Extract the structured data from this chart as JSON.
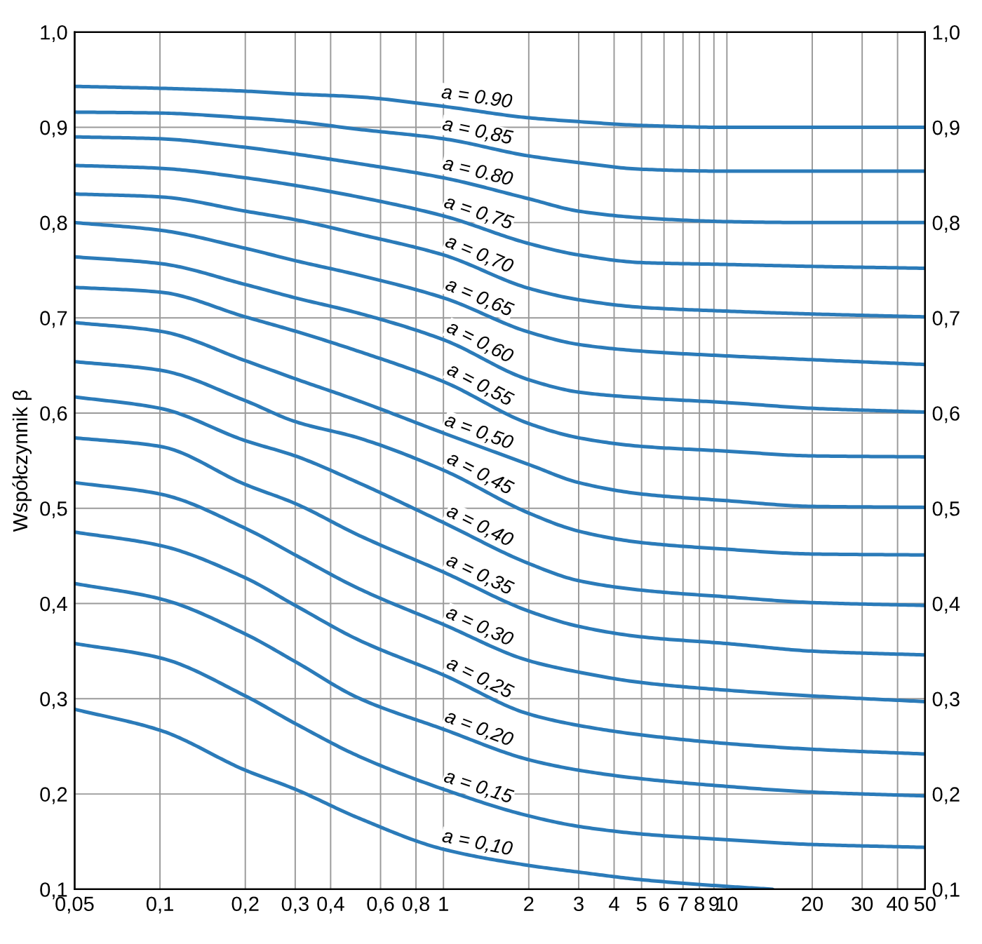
{
  "chart_data": {
    "type": "line",
    "ylabel": "Współczynnik β",
    "log": "x",
    "grid": true,
    "legend": false,
    "marker": "none",
    "line_style": "solid",
    "x": [
      0.05,
      0.1,
      0.2,
      0.3,
      0.5,
      1,
      2,
      3,
      5,
      10,
      20,
      50
    ],
    "xlim": [
      0.05,
      50
    ],
    "xticks": [
      {
        "value": 0.05,
        "label": "0,05"
      },
      {
        "value": 0.1,
        "label": "0,1"
      },
      {
        "value": 0.2,
        "label": "0,2"
      },
      {
        "value": 0.3,
        "label": "0,3"
      },
      {
        "value": 0.4,
        "label": "0,4"
      },
      {
        "value": 0.6,
        "label": "0,6"
      },
      {
        "value": 0.8,
        "label": "0,8"
      },
      1,
      2,
      3,
      4,
      5,
      6,
      7,
      8,
      9,
      10,
      20,
      30,
      40,
      50
    ],
    "ylim": [
      0.1,
      1.0
    ],
    "yticks": [
      {
        "value": 0.1,
        "label": "0,1"
      },
      {
        "value": 0.2,
        "label": "0,2"
      },
      {
        "value": 0.3,
        "label": "0,3"
      },
      {
        "value": 0.4,
        "label": "0,4"
      },
      {
        "value": 0.5,
        "label": "0,5"
      },
      {
        "value": 0.6,
        "label": "0,6"
      },
      {
        "value": 0.7,
        "label": "0,7"
      },
      {
        "value": 0.8,
        "label": "0,8"
      },
      {
        "value": 0.9,
        "label": "0,9"
      },
      {
        "value": 1.0,
        "label": "1,0"
      }
    ],
    "y2lim": [
      0.1,
      1.0
    ],
    "y2ticks": [
      {
        "value": 0.1,
        "label": "0,1"
      },
      {
        "value": 0.2,
        "label": "0,2"
      },
      {
        "value": 0.3,
        "label": "0,3"
      },
      {
        "value": 0.4,
        "label": "0,4"
      },
      {
        "value": 0.5,
        "label": "0,5"
      },
      {
        "value": 0.6,
        "label": "0,6"
      },
      {
        "value": 0.7,
        "label": "0,7"
      },
      {
        "value": 0.8,
        "label": "0,8"
      },
      {
        "value": 0.9,
        "label": "0,9"
      },
      {
        "value": 1.0,
        "label": "1,0"
      }
    ],
    "series": [
      {
        "name": "a = 0.90",
        "color": "#2b7bb9",
        "values": [
          0.943,
          0.941,
          0.938,
          0.935,
          0.932,
          0.922,
          0.91,
          0.906,
          0.902,
          0.9,
          0.9,
          0.9
        ]
      },
      {
        "name": "a = 0,85",
        "color": "#2b7bb9",
        "values": [
          0.916,
          0.915,
          0.91,
          0.906,
          0.898,
          0.888,
          0.87,
          0.863,
          0.856,
          0.854,
          0.854,
          0.854
        ]
      },
      {
        "name": "a = 0.80",
        "color": "#2b7bb9",
        "values": [
          0.89,
          0.888,
          0.879,
          0.872,
          0.862,
          0.847,
          0.825,
          0.812,
          0.805,
          0.801,
          0.8,
          0.8
        ]
      },
      {
        "name": "a = 0,75",
        "color": "#2b7bb9",
        "values": [
          0.86,
          0.857,
          0.847,
          0.839,
          0.827,
          0.807,
          0.778,
          0.766,
          0.758,
          0.756,
          0.754,
          0.752
        ]
      },
      {
        "name": "a = 0,70",
        "color": "#2b7bb9",
        "values": [
          0.83,
          0.827,
          0.812,
          0.803,
          0.788,
          0.766,
          0.731,
          0.719,
          0.711,
          0.707,
          0.704,
          0.701
        ]
      },
      {
        "name": "a = 0,65",
        "color": "#2b7bb9",
        "values": [
          0.8,
          0.792,
          0.773,
          0.76,
          0.745,
          0.721,
          0.685,
          0.672,
          0.665,
          0.66,
          0.656,
          0.651
        ]
      },
      {
        "name": "a = 0,60",
        "color": "#2b7bb9",
        "values": [
          0.764,
          0.757,
          0.735,
          0.721,
          0.705,
          0.677,
          0.635,
          0.622,
          0.616,
          0.611,
          0.605,
          0.601
        ]
      },
      {
        "name": "a = 0,55",
        "color": "#2b7bb9",
        "values": [
          0.732,
          0.727,
          0.701,
          0.686,
          0.665,
          0.633,
          0.589,
          0.574,
          0.565,
          0.56,
          0.555,
          0.554
        ]
      },
      {
        "name": "a = 0,50",
        "color": "#2b7bb9",
        "values": [
          0.695,
          0.686,
          0.655,
          0.636,
          0.613,
          0.579,
          0.546,
          0.527,
          0.515,
          0.508,
          0.502,
          0.501
        ]
      },
      {
        "name": "a = 0,45",
        "color": "#2b7bb9",
        "values": [
          0.654,
          0.645,
          0.613,
          0.591,
          0.574,
          0.54,
          0.495,
          0.476,
          0.464,
          0.457,
          0.452,
          0.451
        ]
      },
      {
        "name": "a = 0,40",
        "color": "#2b7bb9",
        "values": [
          0.617,
          0.605,
          0.571,
          0.555,
          0.527,
          0.485,
          0.442,
          0.424,
          0.414,
          0.407,
          0.401,
          0.398
        ]
      },
      {
        "name": "a = 0,35",
        "color": "#2b7bb9",
        "values": [
          0.574,
          0.565,
          0.525,
          0.505,
          0.472,
          0.433,
          0.392,
          0.376,
          0.365,
          0.358,
          0.35,
          0.346
        ]
      },
      {
        "name": "a = 0,30",
        "color": "#2b7bb9",
        "values": [
          0.527,
          0.515,
          0.479,
          0.451,
          0.416,
          0.378,
          0.34,
          0.328,
          0.317,
          0.309,
          0.303,
          0.297
        ]
      },
      {
        "name": "a = 0,25",
        "color": "#2b7bb9",
        "values": [
          0.475,
          0.461,
          0.427,
          0.398,
          0.362,
          0.325,
          0.284,
          0.272,
          0.262,
          0.253,
          0.247,
          0.242
        ]
      },
      {
        "name": "a = 0,20",
        "color": "#2b7bb9",
        "values": [
          0.421,
          0.405,
          0.368,
          0.339,
          0.301,
          0.268,
          0.236,
          0.225,
          0.216,
          0.208,
          0.202,
          0.198
        ]
      },
      {
        "name": "a = 0,15",
        "color": "#2b7bb9",
        "values": [
          0.358,
          0.343,
          0.303,
          0.274,
          0.24,
          0.205,
          0.177,
          0.166,
          0.158,
          0.152,
          0.147,
          0.144
        ]
      },
      {
        "name": "a = 0,10",
        "color": "#2b7bb9",
        "x": [
          0.05,
          0.1,
          0.2,
          0.3,
          0.5,
          1,
          2,
          3,
          5,
          10,
          14.5
        ],
        "values": [
          0.289,
          0.267,
          0.225,
          0.205,
          0.175,
          0.142,
          0.125,
          0.118,
          0.11,
          0.103,
          0.1
        ]
      }
    ]
  }
}
